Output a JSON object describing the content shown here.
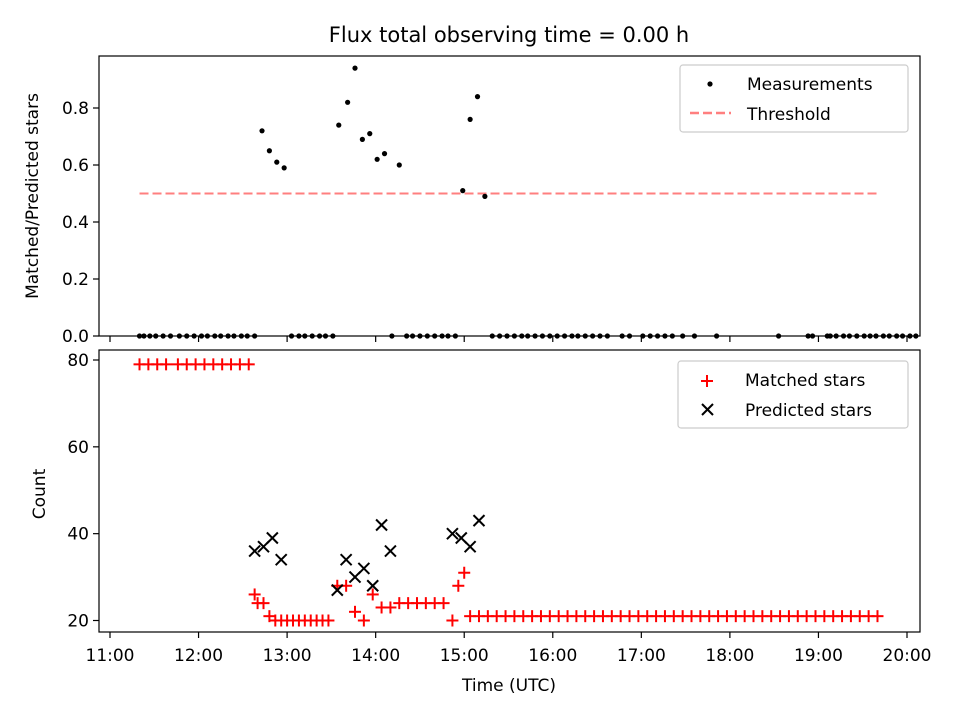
{
  "chart_data": [
    {
      "type": "scatter",
      "title": "Flux total observing time = 0.00 h",
      "xlabel": "",
      "ylabel": "Matched/Predicted stars",
      "xlim": [
        "11:00",
        "20:00"
      ],
      "ylim": [
        0,
        0.98
      ],
      "yticks": [
        0.0,
        0.2,
        0.4,
        0.6,
        0.8
      ],
      "ytick_labels": [
        "0.0",
        "0.2",
        "0.4",
        "0.6",
        "0.8"
      ],
      "legend_position": "top-right",
      "series": [
        {
          "name": "Measurements",
          "marker": "dot",
          "color": "#000000",
          "x": [
            "11:20",
            "11:23",
            "11:27",
            "11:31",
            "11:36",
            "11:41",
            "11:47",
            "11:52",
            "11:57",
            "12:02",
            "12:06",
            "12:11",
            "12:15",
            "12:20",
            "12:24",
            "12:29",
            "12:33",
            "12:38",
            "12:43",
            "12:48",
            "12:53",
            "12:58",
            "13:03",
            "13:08",
            "13:12",
            "13:17",
            "13:22",
            "13:26",
            "13:31",
            "13:35",
            "13:41",
            "13:46",
            "13:51",
            "13:56",
            "14:01",
            "14:06",
            "14:11",
            "14:16",
            "14:21",
            "14:25",
            "14:30",
            "14:35",
            "14:40",
            "14:45",
            "14:49",
            "14:54",
            "14:59",
            "15:04",
            "15:09",
            "15:14",
            "15:19",
            "15:24",
            "15:29",
            "15:34",
            "15:39",
            "15:43",
            "15:48",
            "15:53",
            "15:58",
            "16:03",
            "16:08",
            "16:13",
            "16:17",
            "16:22",
            "16:27",
            "16:32",
            "16:37",
            "16:47",
            "16:52",
            "17:01",
            "17:06",
            "17:11",
            "17:16",
            "17:21",
            "17:28",
            "17:36",
            "17:51",
            "18:33",
            "18:53",
            "18:56",
            "19:06",
            "19:08",
            "19:12",
            "19:17",
            "19:21",
            "19:26",
            "19:31",
            "19:35",
            "19:39",
            "19:44",
            "19:48",
            "19:53",
            "19:57",
            "20:02",
            "20:06"
          ],
          "y": [
            0,
            0,
            0,
            0,
            0,
            0,
            0,
            0,
            0,
            0,
            0,
            0,
            0,
            0,
            0,
            0,
            0,
            0,
            0.72,
            0.65,
            0.61,
            0.59,
            0,
            0,
            0,
            0,
            0,
            0,
            0,
            0.74,
            0.82,
            0.94,
            0.69,
            0.71,
            0.62,
            0.64,
            0,
            0.6,
            0,
            0,
            0,
            0,
            0,
            0,
            0,
            0,
            0.51,
            0.76,
            0.84,
            0.49,
            0,
            0,
            0,
            0,
            0,
            0,
            0,
            0,
            0,
            0,
            0,
            0,
            0,
            0,
            0,
            0,
            0,
            0,
            0,
            0,
            0,
            0,
            0,
            0,
            0,
            0,
            0,
            0,
            0,
            0,
            0,
            0,
            0,
            0,
            0,
            0,
            0,
            0,
            0,
            0,
            0,
            0,
            0,
            0,
            0
          ]
        },
        {
          "name": "Threshold",
          "style": "dashed",
          "color": "#ff7f7f",
          "x": [
            "11:20",
            "19:41"
          ],
          "y": [
            0.5,
            0.5
          ]
        }
      ]
    },
    {
      "type": "scatter",
      "title": "",
      "xlabel": "Time (UTC)",
      "ylabel": "Count",
      "xlim": [
        "11:00",
        "20:00"
      ],
      "ylim": [
        17,
        82
      ],
      "xticks": [
        "11:00",
        "12:00",
        "13:00",
        "14:00",
        "15:00",
        "16:00",
        "17:00",
        "18:00",
        "19:00",
        "20:00"
      ],
      "yticks": [
        20,
        40,
        60,
        80
      ],
      "ytick_labels": [
        "20",
        "40",
        "60",
        "80"
      ],
      "legend_position": "top-right",
      "series": [
        {
          "name": "Matched stars",
          "marker": "plus",
          "color": "#ff0000",
          "x": [
            "11:20",
            "11:26",
            "11:32",
            "11:38",
            "11:46",
            "11:52",
            "11:58",
            "12:04",
            "12:10",
            "12:16",
            "12:22",
            "12:28",
            "12:34",
            "12:38",
            "12:40",
            "12:44",
            "12:48",
            "12:52",
            "12:56",
            "13:00",
            "13:04",
            "13:08",
            "13:12",
            "13:16",
            "13:20",
            "13:24",
            "13:28",
            "13:34",
            "13:40",
            "13:46",
            "13:52",
            "13:58",
            "14:04",
            "14:10",
            "14:16",
            "14:22",
            "14:28",
            "14:34",
            "14:40",
            "14:46",
            "14:52",
            "14:56",
            "15:00",
            "15:04",
            "15:10",
            "15:16",
            "15:22",
            "15:28",
            "15:34",
            "15:40",
            "15:46",
            "15:52",
            "15:58",
            "16:04",
            "16:10",
            "16:16",
            "16:22",
            "16:28",
            "16:34",
            "16:40",
            "16:46",
            "16:52",
            "16:58",
            "17:04",
            "17:10",
            "17:16",
            "17:22",
            "17:28",
            "17:34",
            "17:40",
            "17:46",
            "17:52",
            "17:58",
            "18:04",
            "18:10",
            "18:16",
            "18:22",
            "18:28",
            "18:34",
            "18:40",
            "18:46",
            "18:52",
            "18:58",
            "19:04",
            "19:10",
            "19:16",
            "19:22",
            "19:28",
            "19:34",
            "19:40"
          ],
          "y": [
            79,
            79,
            79,
            79,
            79,
            79,
            79,
            79,
            79,
            79,
            79,
            79,
            79,
            26,
            24,
            24,
            21,
            20,
            20,
            20,
            20,
            20,
            20,
            20,
            20,
            20,
            20,
            28,
            28,
            22,
            20,
            26,
            23,
            23,
            24,
            24,
            24,
            24,
            24,
            24,
            20,
            28,
            31,
            21,
            21,
            21,
            21,
            21,
            21,
            21,
            21,
            21,
            21,
            21,
            21,
            21,
            21,
            21,
            21,
            21,
            21,
            21,
            21,
            21,
            21,
            21,
            21,
            21,
            21,
            21,
            21,
            21,
            21,
            21,
            21,
            21,
            21,
            21,
            21,
            21,
            21,
            21,
            21,
            21,
            21,
            21,
            21,
            21,
            21,
            21
          ]
        },
        {
          "name": "Predicted stars",
          "marker": "x",
          "color": "#000000",
          "x": [
            "12:38",
            "12:44",
            "12:50",
            "12:56",
            "13:34",
            "13:40",
            "13:46",
            "13:52",
            "13:58",
            "14:04",
            "14:10",
            "14:52",
            "14:58",
            "15:04",
            "15:10"
          ],
          "y": [
            36,
            37,
            39,
            34,
            27,
            34,
            30,
            32,
            28,
            42,
            36,
            40,
            39,
            37,
            43
          ]
        }
      ]
    }
  ]
}
